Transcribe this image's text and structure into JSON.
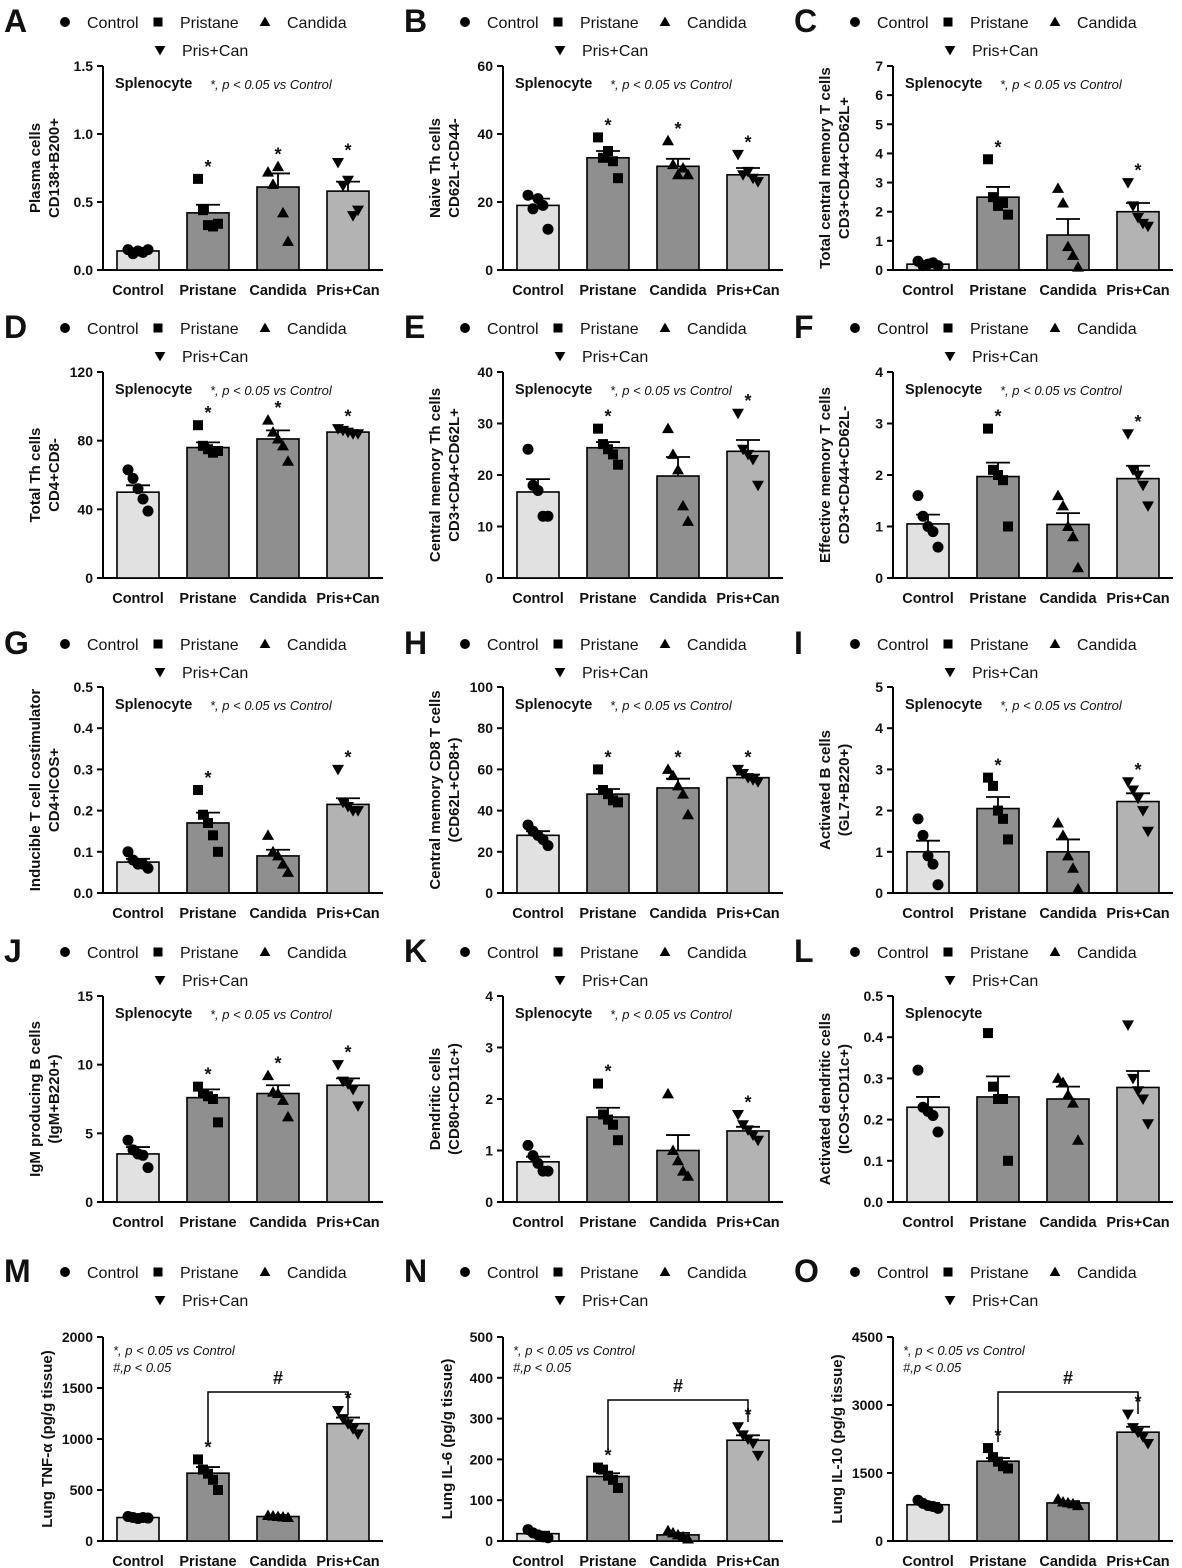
{
  "legend": {
    "labels": [
      "Control",
      "Pristane",
      "Candida",
      "Pris+Can"
    ],
    "symbols": [
      "circle",
      "square",
      "triangle-up",
      "triangle-down"
    ]
  },
  "colors": {
    "bars": [
      "#e1e1e1",
      "#8f8f8f",
      "#8f8f8f",
      "#b3b3b3"
    ],
    "markers": "#000000",
    "axis": "#000000"
  },
  "categories": [
    "Control",
    "Pristane",
    "Candida",
    "Pris+Can"
  ],
  "chart_data": [
    {
      "panel": "A",
      "type": "bar",
      "ylabel": [
        "Plasma cells",
        "CD138+B200+"
      ],
      "ylim": [
        0,
        1.5
      ],
      "ticks": [
        0.0,
        0.5,
        1.0,
        1.5
      ],
      "tick_labels": [
        "0.0",
        "0.5",
        "1.0",
        "1.5"
      ],
      "subtitle": "Splenocyte",
      "note": [
        "*, p < 0.05 vs Control"
      ],
      "means": [
        0.14,
        0.42,
        0.61,
        0.58
      ],
      "sem": [
        0.02,
        0.06,
        0.1,
        0.07
      ],
      "significant": [
        false,
        true,
        true,
        true
      ],
      "points": [
        [
          0.15,
          0.12,
          0.14,
          0.13,
          0.15
        ],
        [
          0.67,
          0.44,
          0.33,
          0.32,
          0.34
        ],
        [
          0.72,
          0.63,
          0.76,
          0.42,
          0.21
        ],
        [
          0.79,
          0.62,
          0.66,
          0.4,
          0.44
        ]
      ]
    },
    {
      "panel": "B",
      "type": "bar",
      "ylabel": [
        "Naive Th cells",
        "CD62L+CD44-"
      ],
      "ylim": [
        0,
        60
      ],
      "ticks": [
        0,
        20,
        40,
        60
      ],
      "tick_labels": [
        "0",
        "20",
        "40",
        "60"
      ],
      "subtitle": "Splenocyte",
      "note": [
        "*, p < 0.05 vs Control"
      ],
      "means": [
        19,
        33,
        30.5,
        28
      ],
      "sem": [
        2,
        2,
        2.2,
        2
      ],
      "significant": [
        false,
        true,
        true,
        true
      ],
      "points": [
        [
          22,
          18,
          21,
          19,
          12
        ],
        [
          39,
          33,
          35,
          32,
          27
        ],
        [
          38,
          31,
          28,
          30,
          28
        ],
        [
          34,
          28,
          29,
          27,
          26
        ]
      ]
    },
    {
      "panel": "C",
      "type": "bar",
      "ylabel": [
        "Total central memory T cells",
        "CD3+CD44+CD62L+"
      ],
      "ylim": [
        0,
        7
      ],
      "ticks": [
        0,
        1,
        2,
        3,
        4,
        5,
        6,
        7
      ],
      "tick_labels": [
        "0",
        "1",
        "2",
        "3",
        "4",
        "5",
        "6",
        "7"
      ],
      "subtitle": "Splenocyte",
      "note": [
        "*, p < 0.05 vs Control"
      ],
      "means": [
        0.2,
        2.5,
        1.2,
        2.0
      ],
      "sem": [
        0.05,
        0.35,
        0.55,
        0.3
      ],
      "significant": [
        false,
        true,
        false,
        true
      ],
      "points": [
        [
          0.3,
          0.15,
          0.2,
          0.25,
          0.15
        ],
        [
          3.8,
          2.5,
          2.2,
          2.3,
          1.9
        ],
        [
          2.8,
          2.3,
          0.8,
          0.5,
          0.1
        ],
        [
          3.0,
          2.2,
          1.8,
          1.6,
          1.5
        ]
      ]
    },
    {
      "panel": "D",
      "type": "bar",
      "ylabel": [
        "Total Th cells",
        "CD4+CD8-"
      ],
      "ylim": [
        0,
        120
      ],
      "ticks": [
        0,
        40,
        80,
        120
      ],
      "tick_labels": [
        "0",
        "40",
        "80",
        "120"
      ],
      "subtitle": "Splenocyte",
      "note": [
        "*, p < 0.05 vs Control"
      ],
      "means": [
        50,
        76,
        81,
        85
      ],
      "sem": [
        4,
        3,
        5,
        1
      ],
      "significant": [
        false,
        true,
        true,
        true
      ],
      "points": [
        [
          63,
          58,
          52,
          46,
          39
        ],
        [
          89,
          77,
          75,
          73,
          74
        ],
        [
          92,
          85,
          81,
          77,
          68
        ],
        [
          87,
          86,
          85,
          84,
          84
        ]
      ]
    },
    {
      "panel": "E",
      "type": "bar",
      "ylabel": [
        "Central memory Th cells",
        "CD3+CD4+CD62L+"
      ],
      "ylim": [
        0,
        40
      ],
      "ticks": [
        0,
        10,
        20,
        30,
        40
      ],
      "tick_labels": [
        "0",
        "10",
        "20",
        "30",
        "40"
      ],
      "subtitle": "Splenocyte",
      "note": [
        "*, p < 0.05 vs Control"
      ],
      "means": [
        16.7,
        25.3,
        19.8,
        24.6
      ],
      "sem": [
        2.5,
        1.1,
        3.7,
        2.2
      ],
      "significant": [
        false,
        true,
        false,
        true
      ],
      "points": [
        [
          25,
          18,
          17,
          12,
          12
        ],
        [
          29,
          26,
          25,
          24,
          22
        ],
        [
          29,
          24,
          21,
          14,
          11
        ],
        [
          32,
          25,
          24,
          23,
          18
        ]
      ]
    },
    {
      "panel": "F",
      "type": "bar",
      "ylabel": [
        "Effective memory T cells",
        "CD3+CD44+CD62L-"
      ],
      "ylim": [
        0,
        4
      ],
      "ticks": [
        0,
        1,
        2,
        3,
        4
      ],
      "tick_labels": [
        "0",
        "1",
        "2",
        "3",
        "4"
      ],
      "subtitle": "Splenocyte",
      "note": [
        "*, p < 0.05 vs Control"
      ],
      "means": [
        1.05,
        1.97,
        1.04,
        1.93
      ],
      "sem": [
        0.18,
        0.27,
        0.22,
        0.25
      ],
      "significant": [
        false,
        true,
        false,
        true
      ],
      "points": [
        [
          1.6,
          1.2,
          1.0,
          0.9,
          0.6
        ],
        [
          2.9,
          2.1,
          2.0,
          1.9,
          1.0
        ],
        [
          1.6,
          1.4,
          1.0,
          0.8,
          0.2
        ],
        [
          2.8,
          2.1,
          2.0,
          1.8,
          1.4
        ]
      ]
    },
    {
      "panel": "G",
      "type": "bar",
      "ylabel": [
        "Inducible T cell costimulator",
        "CD4+ICOS+"
      ],
      "ylim": [
        0,
        0.5
      ],
      "ticks": [
        0.0,
        0.1,
        0.2,
        0.3,
        0.4,
        0.5
      ],
      "tick_labels": [
        "0.0",
        "0.1",
        "0.2",
        "0.3",
        "0.4",
        "0.5"
      ],
      "subtitle": "Splenocyte",
      "note": [
        "*, p < 0.05 vs Control"
      ],
      "means": [
        0.075,
        0.17,
        0.09,
        0.215
      ],
      "sem": [
        0.008,
        0.025,
        0.015,
        0.015
      ],
      "significant": [
        false,
        true,
        false,
        true
      ],
      "points": [
        [
          0.1,
          0.08,
          0.07,
          0.07,
          0.06
        ],
        [
          0.25,
          0.19,
          0.17,
          0.14,
          0.1
        ],
        [
          0.14,
          0.1,
          0.09,
          0.07,
          0.05
        ],
        [
          0.3,
          0.22,
          0.21,
          0.2,
          0.2
        ]
      ]
    },
    {
      "panel": "H",
      "type": "bar",
      "ylabel": [
        "Central memory CD8 T cells",
        "(CD62L+CD8+)"
      ],
      "ylim": [
        0,
        100
      ],
      "ticks": [
        0,
        20,
        40,
        60,
        80,
        100
      ],
      "tick_labels": [
        "0",
        "20",
        "40",
        "60",
        "80",
        "100"
      ],
      "subtitle": "Splenocyte",
      "note": [
        "*, p < 0.05 vs Control"
      ],
      "means": [
        28,
        48,
        51,
        56
      ],
      "sem": [
        2,
        2.5,
        4.5,
        1.5
      ],
      "significant": [
        false,
        true,
        true,
        true
      ],
      "points": [
        [
          33,
          30,
          28,
          26,
          23
        ],
        [
          60,
          50,
          48,
          45,
          44
        ],
        [
          60,
          57,
          52,
          48,
          38
        ],
        [
          60,
          58,
          56,
          55,
          54
        ]
      ]
    },
    {
      "panel": "I",
      "type": "bar",
      "ylabel": [
        "Activated B cells",
        "(GL7+B220+)"
      ],
      "ylim": [
        0,
        5
      ],
      "ticks": [
        0,
        1,
        2,
        3,
        4,
        5
      ],
      "tick_labels": [
        "0",
        "1",
        "2",
        "3",
        "4",
        "5"
      ],
      "subtitle": "Splenocyte",
      "note": [
        "*, p < 0.05 vs Control"
      ],
      "means": [
        1.0,
        2.05,
        1.0,
        2.22
      ],
      "sem": [
        0.27,
        0.28,
        0.3,
        0.2
      ],
      "significant": [
        false,
        true,
        false,
        true
      ],
      "points": [
        [
          1.8,
          1.4,
          0.9,
          0.7,
          0.2
        ],
        [
          2.8,
          2.6,
          2.0,
          1.8,
          1.3
        ],
        [
          1.7,
          1.4,
          0.9,
          0.6,
          0.1
        ],
        [
          2.7,
          2.5,
          2.3,
          2.0,
          1.5
        ]
      ]
    },
    {
      "panel": "J",
      "type": "bar",
      "ylabel": [
        "IgM producing B cells",
        "(IgM+B220+)"
      ],
      "ylim": [
        0,
        15
      ],
      "ticks": [
        0,
        5,
        10,
        15
      ],
      "tick_labels": [
        "0",
        "5",
        "10",
        "15"
      ],
      "subtitle": "Splenocyte",
      "note": [
        "*, p < 0.05 vs Control"
      ],
      "means": [
        3.5,
        7.6,
        7.9,
        8.5
      ],
      "sem": [
        0.5,
        0.6,
        0.6,
        0.5
      ],
      "significant": [
        false,
        true,
        true,
        true
      ],
      "points": [
        [
          4.5,
          3.8,
          3.5,
          3.4,
          2.5
        ],
        [
          8.4,
          7.9,
          7.7,
          7.5,
          5.8
        ],
        [
          9.2,
          8.0,
          7.9,
          7.4,
          6.2
        ],
        [
          10.0,
          8.8,
          8.6,
          8.2,
          7.0
        ]
      ]
    },
    {
      "panel": "K",
      "type": "bar",
      "ylabel": [
        "Dendritic cells",
        "(CD80+CD11c+)"
      ],
      "ylim": [
        0,
        4
      ],
      "ticks": [
        0,
        1,
        2,
        3,
        4
      ],
      "tick_labels": [
        "0",
        "1",
        "2",
        "3",
        "4"
      ],
      "subtitle": "Splenocyte",
      "note": [
        "*, p < 0.05 vs Control"
      ],
      "means": [
        0.78,
        1.65,
        1.0,
        1.38
      ],
      "sem": [
        0.1,
        0.18,
        0.3,
        0.08
      ],
      "significant": [
        false,
        true,
        false,
        true
      ],
      "points": [
        [
          1.1,
          0.9,
          0.75,
          0.6,
          0.6
        ],
        [
          2.3,
          1.7,
          1.6,
          1.5,
          1.2
        ],
        [
          2.1,
          1.0,
          0.8,
          0.6,
          0.5
        ],
        [
          1.7,
          1.5,
          1.4,
          1.3,
          1.2
        ]
      ]
    },
    {
      "panel": "L",
      "type": "bar",
      "ylabel": [
        "Activated dendritic cells",
        "(ICOS+CD11c+)"
      ],
      "ylim": [
        0,
        0.5
      ],
      "ticks": [
        0.0,
        0.1,
        0.2,
        0.3,
        0.4,
        0.5
      ],
      "tick_labels": [
        "0.0",
        "0.1",
        "0.2",
        "0.3",
        "0.4",
        "0.5"
      ],
      "subtitle": "Splenocyte",
      "note": [],
      "means": [
        0.23,
        0.255,
        0.25,
        0.278
      ],
      "sem": [
        0.025,
        0.05,
        0.03,
        0.04
      ],
      "significant": [
        false,
        false,
        false,
        false
      ],
      "points": [
        [
          0.32,
          0.23,
          0.22,
          0.21,
          0.17
        ],
        [
          0.41,
          0.28,
          0.25,
          0.25,
          0.1
        ],
        [
          0.3,
          0.29,
          0.26,
          0.24,
          0.15
        ],
        [
          0.43,
          0.3,
          0.27,
          0.25,
          0.19
        ]
      ]
    },
    {
      "panel": "M",
      "type": "bar",
      "ylabel": [
        "Lung TNF-α (pg/g tissue)"
      ],
      "ylim": [
        0,
        2000
      ],
      "ticks": [
        0,
        500,
        1000,
        1500,
        2000
      ],
      "tick_labels": [
        "0",
        "500",
        "1000",
        "1500",
        "2000"
      ],
      "subtitle": "",
      "note": [
        "*, p < 0.05 vs Control",
        "#,p < 0.05"
      ],
      "means": [
        230,
        665,
        240,
        1150
      ],
      "sem": [
        15,
        60,
        15,
        60
      ],
      "significant": [
        false,
        true,
        false,
        true
      ],
      "points": [
        [
          240,
          230,
          220,
          230,
          225
        ],
        [
          800,
          700,
          660,
          600,
          500
        ],
        [
          250,
          245,
          240,
          235,
          230
        ],
        [
          1280,
          1200,
          1150,
          1100,
          1050
        ]
      ],
      "bracket": {
        "from": 1,
        "to": 3,
        "label": "#"
      }
    },
    {
      "panel": "N",
      "type": "bar",
      "ylabel": [
        "Lung IL-6 (pg/g tissue)"
      ],
      "ylim": [
        0,
        500
      ],
      "ticks": [
        0,
        100,
        200,
        300,
        400,
        500
      ],
      "tick_labels": [
        "0",
        "100",
        "200",
        "300",
        "400",
        "500"
      ],
      "subtitle": "",
      "note": [
        "*, p < 0.05 vs Control",
        "#,p < 0.05"
      ],
      "means": [
        18,
        158,
        15,
        247
      ],
      "sem": [
        5,
        8,
        5,
        12
      ],
      "significant": [
        false,
        true,
        false,
        true
      ],
      "points": [
        [
          28,
          20,
          15,
          10,
          8
        ],
        [
          180,
          175,
          160,
          150,
          130
        ],
        [
          25,
          20,
          15,
          10,
          5
        ],
        [
          280,
          260,
          250,
          240,
          210
        ]
      ],
      "bracket": {
        "from": 1,
        "to": 3,
        "label": "#"
      }
    },
    {
      "panel": "O",
      "type": "bar",
      "ylabel": [
        "Lung IL-10 (pg/g tissue)"
      ],
      "ylim": [
        0,
        4500
      ],
      "ticks": [
        0,
        1500,
        3000,
        4500
      ],
      "tick_labels": [
        "0",
        "1500",
        "3000",
        "4500"
      ],
      "subtitle": "",
      "note": [
        "*, p < 0.05 vs Control",
        "#,p < 0.05"
      ],
      "means": [
        800,
        1760,
        840,
        2400
      ],
      "sem": [
        40,
        70,
        40,
        120
      ],
      "significant": [
        false,
        true,
        false,
        true
      ],
      "points": [
        [
          900,
          830,
          780,
          760,
          720
        ],
        [
          2050,
          1850,
          1750,
          1650,
          1600
        ],
        [
          920,
          860,
          840,
          820,
          780
        ],
        [
          2800,
          2500,
          2400,
          2300,
          2150
        ]
      ],
      "bracket": {
        "from": 1,
        "to": 3,
        "label": "#"
      }
    }
  ]
}
